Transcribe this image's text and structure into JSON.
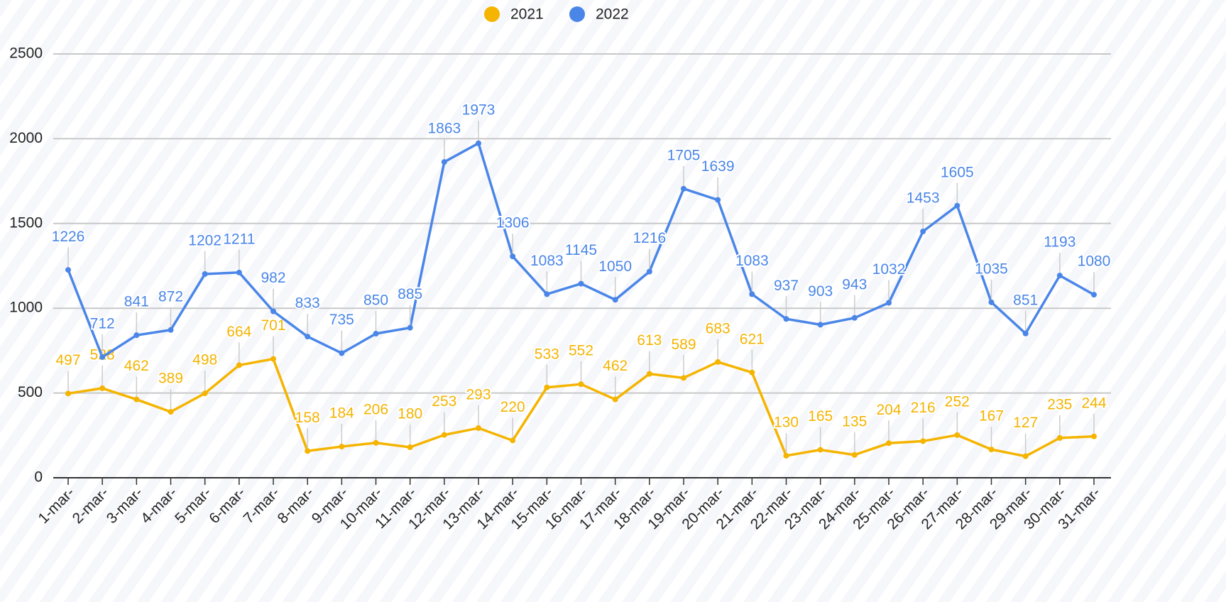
{
  "chart_data": {
    "type": "line",
    "categories": [
      "1-mar-",
      "2-mar-",
      "3-mar-",
      "4-mar-",
      "5-mar-",
      "6-mar-",
      "7-mar-",
      "8-mar-",
      "9-mar-",
      "10-mar-",
      "11-mar-",
      "12-mar-",
      "13-mar-",
      "14-mar-",
      "15-mar-",
      "16-mar-",
      "17-mar-",
      "18-mar-",
      "19-mar-",
      "20-mar-",
      "21-mar-",
      "22-mar-",
      "23-mar-",
      "24-mar-",
      "25-mar-",
      "26-mar-",
      "27-mar-",
      "28-mar-",
      "29-mar-",
      "30-mar-",
      "31-mar-"
    ],
    "series": [
      {
        "name": "2021",
        "color": "#f4b400",
        "values": [
          497,
          528,
          462,
          389,
          498,
          664,
          701,
          158,
          184,
          206,
          180,
          253,
          293,
          220,
          533,
          552,
          462,
          613,
          589,
          683,
          621,
          130,
          165,
          135,
          204,
          216,
          252,
          167,
          127,
          235,
          244
        ]
      },
      {
        "name": "2022",
        "color": "#4a86e8",
        "values": [
          1226,
          712,
          841,
          872,
          1202,
          1211,
          982,
          833,
          735,
          850,
          885,
          1863,
          1973,
          1306,
          1083,
          1145,
          1050,
          1216,
          1705,
          1639,
          1083,
          937,
          903,
          943,
          1032,
          1453,
          1605,
          1035,
          851,
          1193,
          1080
        ]
      }
    ],
    "ylim": [
      0,
      2500
    ],
    "yticks": [
      0,
      500,
      1000,
      1500,
      2000,
      2500
    ],
    "grid": true,
    "legend": "top"
  }
}
